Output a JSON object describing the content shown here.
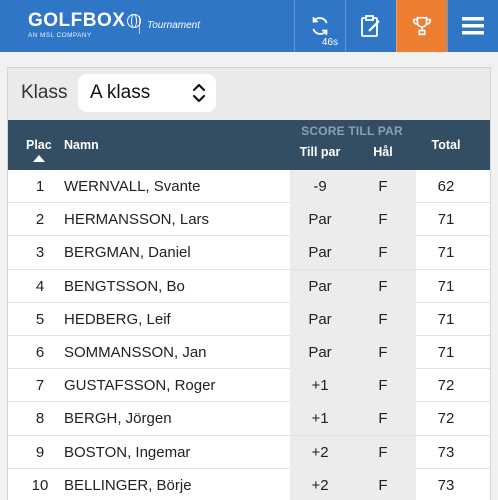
{
  "header": {
    "brand": "GOLFBOX",
    "brand_sub": "AN MSL COMPANY",
    "tagline": "Tournament",
    "refresh_countdown": "46s",
    "accent_color": "#2f77c6",
    "active_color": "#ed7d31"
  },
  "filter": {
    "label": "Klass",
    "selected": "A klass"
  },
  "table": {
    "columns": {
      "plac": "Plac",
      "namn": "Namn",
      "group": "SCORE TILL PAR",
      "till_par": "Till par",
      "hal": "Hål",
      "total": "Total"
    },
    "rows": [
      {
        "pos": "1",
        "name": "WERNVALL, Svante",
        "till_par": "-9",
        "hal": "F",
        "total": "62"
      },
      {
        "pos": "2",
        "name": "HERMANSSON, Lars",
        "till_par": "Par",
        "hal": "F",
        "total": "71"
      },
      {
        "pos": "3",
        "name": "BERGMAN, Daniel",
        "till_par": "Par",
        "hal": "F",
        "total": "71"
      },
      {
        "pos": "4",
        "name": "BENGTSSON, Bo",
        "till_par": "Par",
        "hal": "F",
        "total": "71"
      },
      {
        "pos": "5",
        "name": "HEDBERG, Leif",
        "till_par": "Par",
        "hal": "F",
        "total": "71"
      },
      {
        "pos": "6",
        "name": "SOMMANSSON, Jan",
        "till_par": "Par",
        "hal": "F",
        "total": "71"
      },
      {
        "pos": "7",
        "name": "GUSTAFSSON, Roger",
        "till_par": "+1",
        "hal": "F",
        "total": "72"
      },
      {
        "pos": "8",
        "name": "BERGH, Jörgen",
        "till_par": "+1",
        "hal": "F",
        "total": "72"
      },
      {
        "pos": "9",
        "name": "BOSTON, Ingemar",
        "till_par": "+2",
        "hal": "F",
        "total": "73"
      },
      {
        "pos": "10",
        "name": "BELLINGER, Börje",
        "till_par": "+2",
        "hal": "F",
        "total": "73"
      }
    ]
  },
  "icons": {
    "refresh": "refresh-icon",
    "scorecard": "scorecard-icon",
    "trophy": "trophy-icon",
    "menu": "menu-icon",
    "sort": "sort-ascending-icon",
    "select": "chevron-updown-icon"
  }
}
